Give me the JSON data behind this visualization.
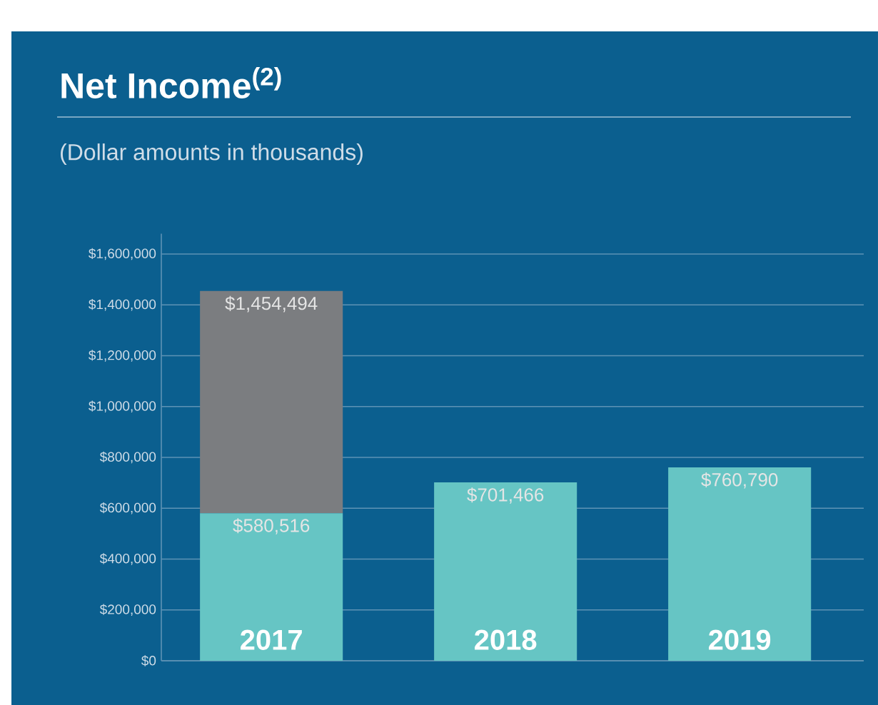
{
  "chart_data": {
    "type": "bar",
    "title": "Net Income$^{(2)}$",
    "subtitle": "(Dollar amounts in thousands)",
    "categories": [
      "2017",
      "2018",
      "2019"
    ],
    "stacked": true,
    "series": [
      {
        "color": "#66c5c4",
        "values": [
          580516,
          701466,
          760790
        ],
        "value_labels": [
          "$580,516",
          "$701,466",
          "$760,790"
        ]
      },
      {
        "color": "#7b7d80",
        "values": [
          873978,
          null,
          null
        ]
      }
    ],
    "totals": [
      "$1,454,494",
      null,
      null
    ],
    "ylim": [
      0,
      1680000
    ],
    "yticks": [
      {
        "value": 0,
        "label": "$0"
      },
      {
        "value": 200000,
        "label": "$200,000"
      },
      {
        "value": 400000,
        "label": "$400,000"
      },
      {
        "value": 600000,
        "label": "$600,000"
      },
      {
        "value": 800000,
        "label": "$800,000"
      },
      {
        "value": 1000000,
        "label": "$1,000,000"
      },
      {
        "value": 1200000,
        "label": "$1,200,000"
      },
      {
        "value": 1400000,
        "label": "$1,400,000"
      },
      {
        "value": 1600000,
        "label": "$1,600,000"
      }
    ],
    "grid": "y"
  }
}
